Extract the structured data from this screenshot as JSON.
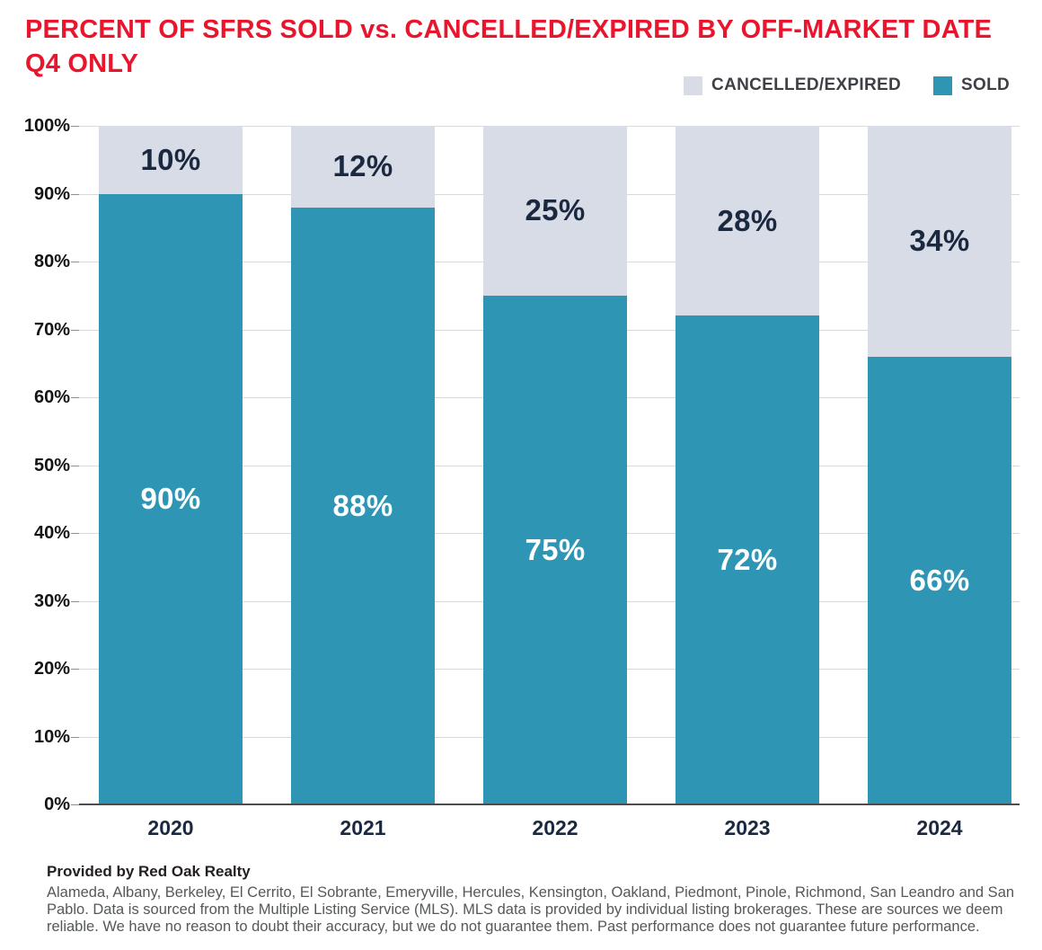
{
  "header": {
    "title_line1": "PERCENT OF SFRS SOLD vs. CANCELLED/EXPIRED BY OFF-MARKET DATE",
    "title_line2": "Q4 ONLY"
  },
  "legend": [
    {
      "label": "CANCELLED/EXPIRED",
      "color": "#d7dce6"
    },
    {
      "label": "SOLD",
      "color": "#2e96b4"
    }
  ],
  "chart_data": {
    "type": "bar",
    "stacked": true,
    "title": "PERCENT OF SFRS SOLD vs. CANCELLED/EXPIRED BY OFF-MARKET DATE Q4 ONLY",
    "categories": [
      "2020",
      "2021",
      "2022",
      "2023",
      "2024"
    ],
    "series": [
      {
        "name": "SOLD",
        "color": "#2e96b4",
        "label_color": "#ffffff",
        "values": [
          90,
          88,
          75,
          72,
          66
        ]
      },
      {
        "name": "CANCELLED/EXPIRED",
        "color": "#d7dce6",
        "label_color": "#1b2940",
        "values": [
          10,
          12,
          25,
          28,
          34
        ]
      }
    ],
    "xlabel": "",
    "ylabel": "",
    "ylim": [
      0,
      100
    ],
    "y_ticks": [
      "0%",
      "10%",
      "20%",
      "30%",
      "40%",
      "50%",
      "60%",
      "70%",
      "80%",
      "90%",
      "100%"
    ],
    "grid": true,
    "legend_position": "top-right"
  },
  "footer": {
    "provided_by": "Provided by Red Oak Realty",
    "disclaimer": "Alameda, Albany, Berkeley, El Cerrito, El Sobrante, Emeryville, Hercules, Kensington, Oakland, Piedmont, Pinole, Richmond, San Leandro and San Pablo. Data is sourced from the Multiple Listing Service (MLS). MLS data is provided by individual listing brokerages. These are sources we deem reliable. We have no reason to doubt their accuracy, but we do not guarantee them. Past performance does not guarantee future performance."
  },
  "colors": {
    "title": "#e8152d",
    "axis_text": "#141414",
    "x_axis_text": "#1b2940",
    "grid": "#d9d9d9",
    "axis_line": "#4a4c4e",
    "footer_text": "#55585a"
  }
}
